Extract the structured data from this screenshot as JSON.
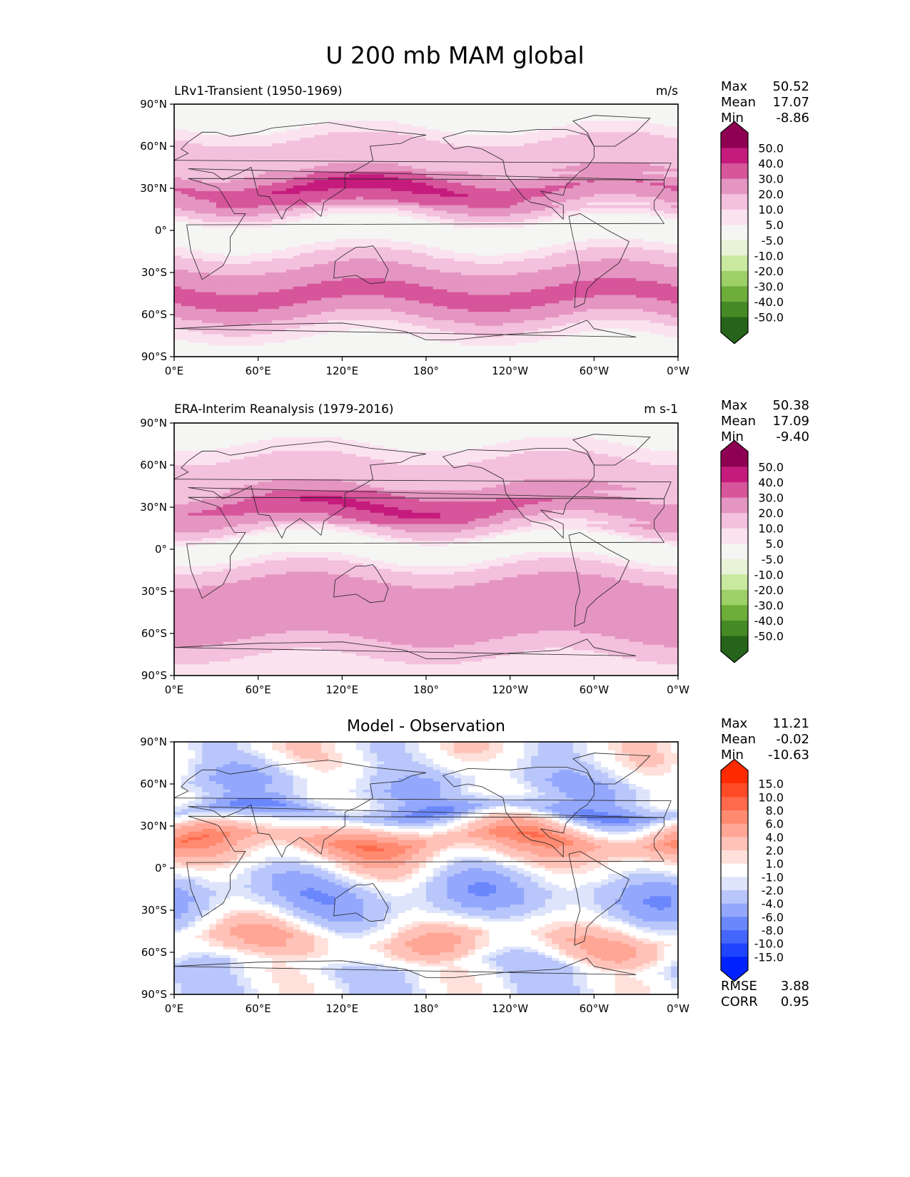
{
  "chart_data": [
    {
      "type": "heatmap",
      "subtype": "filled-contour-map",
      "panel": "model",
      "title_left": "LRv1-Transient (1950-1969)",
      "title_right": "m/s",
      "xlabel": "",
      "ylabel": "",
      "xticks": [
        "0°E",
        "60°E",
        "120°E",
        "180°",
        "120°W",
        "60°W",
        "0°W"
      ],
      "yticks": [
        "90°N",
        "60°N",
        "30°N",
        "0°",
        "30°S",
        "60°S",
        "90°S"
      ],
      "xlim": [
        0,
        360
      ],
      "ylim": [
        -90,
        90
      ],
      "stats": {
        "Max": "50.52",
        "Mean": "17.07",
        "Min": "-8.86"
      },
      "colorbar": {
        "levels": [
          "50.0",
          "40.0",
          "30.0",
          "20.0",
          "10.0",
          "5.0",
          "-5.0",
          "-10.0",
          "-20.0",
          "-30.0",
          "-40.0",
          "-50.0"
        ],
        "colors": [
          "#8e0152",
          "#c51b7d",
          "#d6559b",
          "#e595c1",
          "#f3c0dd",
          "#fbe2ef",
          "#f5f5f4",
          "#e8f3d8",
          "#c9e8a0",
          "#9dd066",
          "#6fad3a",
          "#468a26",
          "#27641b"
        ],
        "extend": "both"
      },
      "bands": [
        {
          "lat": 80,
          "value": -2
        },
        {
          "lat": 70,
          "value": 8
        },
        {
          "lat": 60,
          "value": 12
        },
        {
          "lat": 50,
          "value": 15
        },
        {
          "lat": 40,
          "value": 22
        },
        {
          "lat": 30,
          "value": 38
        },
        {
          "lat": 20,
          "value": 28
        },
        {
          "lat": 10,
          "value": 8
        },
        {
          "lat": 0,
          "value": -2
        },
        {
          "lat": -10,
          "value": 4
        },
        {
          "lat": -20,
          "value": 12
        },
        {
          "lat": -30,
          "value": 24
        },
        {
          "lat": -40,
          "value": 30
        },
        {
          "lat": -50,
          "value": 32
        },
        {
          "lat": -60,
          "value": 22
        },
        {
          "lat": -70,
          "value": 9
        },
        {
          "lat": -80,
          "value": 3
        }
      ]
    },
    {
      "type": "heatmap",
      "subtype": "filled-contour-map",
      "panel": "observation",
      "title_left": "ERA-Interim Reanalysis (1979-2016)",
      "title_right": "m s-1",
      "xticks": [
        "0°E",
        "60°E",
        "120°E",
        "180°",
        "120°W",
        "60°W",
        "0°W"
      ],
      "yticks": [
        "90°N",
        "60°N",
        "30°N",
        "0°",
        "30°S",
        "60°S",
        "90°S"
      ],
      "xlim": [
        0,
        360
      ],
      "ylim": [
        -90,
        90
      ],
      "stats": {
        "Max": "50.38",
        "Mean": "17.09",
        "Min": "-9.40"
      },
      "colorbar": {
        "levels": [
          "50.0",
          "40.0",
          "30.0",
          "20.0",
          "10.0",
          "5.0",
          "-5.0",
          "-10.0",
          "-20.0",
          "-30.0",
          "-40.0",
          "-50.0"
        ],
        "colors": [
          "#8e0152",
          "#c51b7d",
          "#d6559b",
          "#e595c1",
          "#f3c0dd",
          "#fbe2ef",
          "#f5f5f4",
          "#e8f3d8",
          "#c9e8a0",
          "#9dd066",
          "#6fad3a",
          "#468a26",
          "#27641b"
        ],
        "extend": "both"
      },
      "bands": [
        {
          "lat": 80,
          "value": 2
        },
        {
          "lat": 70,
          "value": 8
        },
        {
          "lat": 60,
          "value": 12
        },
        {
          "lat": 50,
          "value": 16
        },
        {
          "lat": 40,
          "value": 24
        },
        {
          "lat": 30,
          "value": 36
        },
        {
          "lat": 20,
          "value": 24
        },
        {
          "lat": 10,
          "value": 6
        },
        {
          "lat": 0,
          "value": -2
        },
        {
          "lat": -10,
          "value": 8
        },
        {
          "lat": -20,
          "value": 18
        },
        {
          "lat": -30,
          "value": 28
        },
        {
          "lat": -40,
          "value": 28
        },
        {
          "lat": -50,
          "value": 30
        },
        {
          "lat": -60,
          "value": 24
        },
        {
          "lat": -70,
          "value": 14
        },
        {
          "lat": -80,
          "value": 8
        }
      ]
    },
    {
      "type": "heatmap",
      "subtype": "filled-contour-map",
      "panel": "difference",
      "title_center": "Model - Observation",
      "xticks": [
        "0°E",
        "60°E",
        "120°E",
        "180°",
        "120°W",
        "60°W",
        "0°W"
      ],
      "yticks": [
        "90°N",
        "60°N",
        "30°N",
        "0°",
        "30°S",
        "60°S",
        "90°S"
      ],
      "xlim": [
        0,
        360
      ],
      "ylim": [
        -90,
        90
      ],
      "stats": {
        "Max": "11.21",
        "Mean": "-0.02",
        "Min": "-10.63"
      },
      "extra_stats": {
        "RMSE": "3.88",
        "CORR": "0.95"
      },
      "colorbar": {
        "levels": [
          "15.0",
          "10.0",
          "8.0",
          "6.0",
          "4.0",
          "2.0",
          "1.0",
          "-1.0",
          "-2.0",
          "-4.0",
          "-6.0",
          "-8.0",
          "-10.0",
          "-15.0"
        ],
        "colors": [
          "#ff2a00",
          "#ff4a26",
          "#ff6a4c",
          "#ff8a70",
          "#ffa696",
          "#ffc2b8",
          "#ffe0da",
          "#ffffff",
          "#dde4fb",
          "#b8c6fb",
          "#93a8fc",
          "#6b87fc",
          "#4466fd",
          "#1f44fe",
          "#0022ff"
        ],
        "extend": "both"
      },
      "bands": [
        {
          "lat": 80,
          "value": 0
        },
        {
          "lat": 70,
          "value": -1.5
        },
        {
          "lat": 60,
          "value": -3
        },
        {
          "lat": 50,
          "value": -2
        },
        {
          "lat": 40,
          "value": -5
        },
        {
          "lat": 30,
          "value": 1.5
        },
        {
          "lat": 20,
          "value": 6
        },
        {
          "lat": 10,
          "value": 3
        },
        {
          "lat": 0,
          "value": 0
        },
        {
          "lat": -10,
          "value": -3
        },
        {
          "lat": -20,
          "value": -4
        },
        {
          "lat": -30,
          "value": -3
        },
        {
          "lat": -40,
          "value": 0
        },
        {
          "lat": -50,
          "value": 3
        },
        {
          "lat": -60,
          "value": 2
        },
        {
          "lat": -70,
          "value": -1.5
        },
        {
          "lat": -80,
          "value": -1
        }
      ]
    }
  ],
  "figure": {
    "suptitle": "U 200 mb MAM global",
    "stat_labels": {
      "max": "Max",
      "mean": "Mean",
      "min": "Min",
      "rmse": "RMSE",
      "corr": "CORR"
    }
  }
}
